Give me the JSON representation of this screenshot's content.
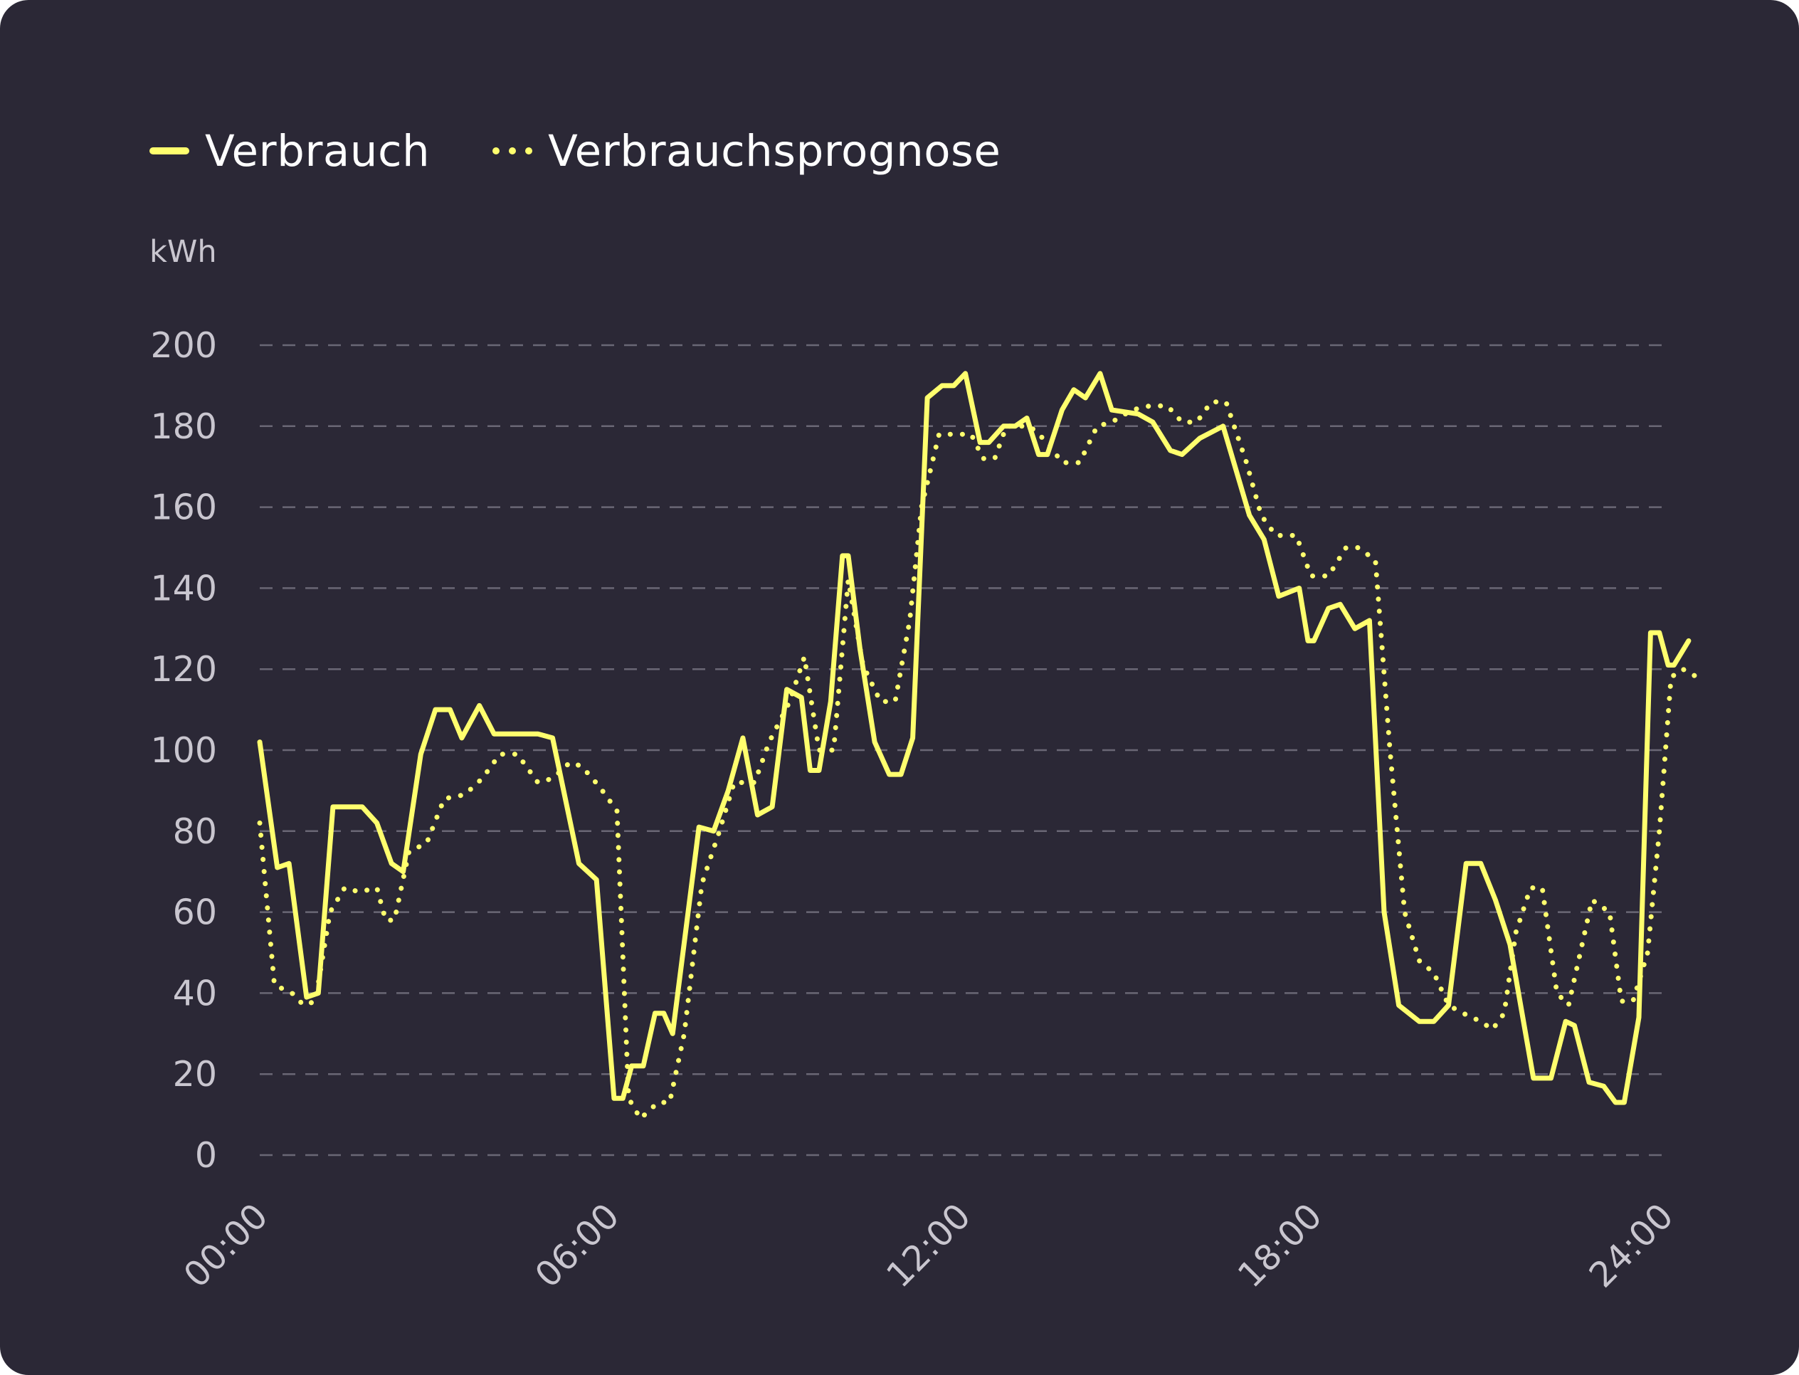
{
  "legend": {
    "actual_label": "Verbrauch",
    "forecast_label": "Verbrauchsprognose"
  },
  "colors": {
    "background": "#2b2836",
    "line": "#ffff6e",
    "grid": "#6a6775",
    "text": "#c9c6cf"
  },
  "chart_data": {
    "type": "line",
    "ylabel": "kWh",
    "ylim": [
      0,
      200
    ],
    "xlim": [
      0,
      24
    ],
    "yticks": [
      "0",
      "20",
      "40",
      "60",
      "80",
      "100",
      "120",
      "140",
      "160",
      "180",
      "200"
    ],
    "xticks": [
      {
        "value": 0,
        "label": "00:00"
      },
      {
        "value": 6,
        "label": "06:00"
      },
      {
        "value": 12,
        "label": "12:00"
      },
      {
        "value": 18,
        "label": "18:00"
      },
      {
        "value": 24,
        "label": "24:00"
      }
    ],
    "grid": true,
    "legend_position": "top-left",
    "series": [
      {
        "name": "Verbrauch",
        "style": "solid",
        "points": [
          [
            0,
            102
          ],
          [
            0.3,
            71
          ],
          [
            0.5,
            72
          ],
          [
            0.8,
            39
          ],
          [
            1,
            40
          ],
          [
            1.25,
            86
          ],
          [
            1.75,
            86
          ],
          [
            2,
            82
          ],
          [
            2.25,
            72
          ],
          [
            2.45,
            70
          ],
          [
            2.75,
            99
          ],
          [
            3,
            110
          ],
          [
            3.25,
            110
          ],
          [
            3.45,
            103
          ],
          [
            3.75,
            111
          ],
          [
            4,
            104
          ],
          [
            4.75,
            104
          ],
          [
            5,
            103
          ],
          [
            5.45,
            72
          ],
          [
            5.75,
            68
          ],
          [
            6.05,
            14
          ],
          [
            6.2,
            14
          ],
          [
            6.35,
            22
          ],
          [
            6.55,
            22
          ],
          [
            6.75,
            35
          ],
          [
            6.9,
            35
          ],
          [
            7.05,
            30
          ],
          [
            7.5,
            81
          ],
          [
            7.75,
            80
          ],
          [
            8,
            90
          ],
          [
            8.25,
            103
          ],
          [
            8.5,
            84
          ],
          [
            8.75,
            86
          ],
          [
            9,
            115
          ],
          [
            9.25,
            113
          ],
          [
            9.4,
            95
          ],
          [
            9.55,
            95
          ],
          [
            9.75,
            112
          ],
          [
            9.95,
            148
          ],
          [
            10.05,
            148
          ],
          [
            10.25,
            125
          ],
          [
            10.5,
            102
          ],
          [
            10.75,
            94
          ],
          [
            10.95,
            94
          ],
          [
            11.15,
            103
          ],
          [
            11.4,
            187
          ],
          [
            11.65,
            190
          ],
          [
            11.85,
            190
          ],
          [
            12.05,
            193
          ],
          [
            12.3,
            176
          ],
          [
            12.45,
            176
          ],
          [
            12.7,
            180
          ],
          [
            12.9,
            180
          ],
          [
            13.1,
            182
          ],
          [
            13.3,
            173
          ],
          [
            13.45,
            173
          ],
          [
            13.7,
            184
          ],
          [
            13.9,
            189
          ],
          [
            14.1,
            187
          ],
          [
            14.35,
            193
          ],
          [
            14.55,
            184
          ],
          [
            15,
            183
          ],
          [
            15.25,
            181
          ],
          [
            15.55,
            174
          ],
          [
            15.75,
            173
          ],
          [
            16.05,
            177
          ],
          [
            16.45,
            180
          ],
          [
            16.9,
            158
          ],
          [
            17.15,
            152
          ],
          [
            17.4,
            138
          ],
          [
            17.75,
            140
          ],
          [
            17.9,
            127
          ],
          [
            18,
            127
          ],
          [
            18.25,
            135
          ],
          [
            18.45,
            136
          ],
          [
            18.7,
            130
          ],
          [
            18.95,
            132
          ],
          [
            19.2,
            60
          ],
          [
            19.45,
            37
          ],
          [
            19.8,
            33
          ],
          [
            20.05,
            33
          ],
          [
            20.3,
            37
          ],
          [
            20.6,
            72
          ],
          [
            20.85,
            72
          ],
          [
            21.1,
            63
          ],
          [
            21.35,
            52
          ],
          [
            21.75,
            19
          ],
          [
            22.05,
            19
          ],
          [
            22.3,
            33
          ],
          [
            22.45,
            32
          ],
          [
            22.7,
            18
          ],
          [
            22.95,
            17
          ],
          [
            23.15,
            13
          ],
          [
            23.3,
            13
          ],
          [
            23.55,
            34
          ],
          [
            23.75,
            129
          ],
          [
            23.9,
            129
          ],
          [
            24.05,
            121
          ],
          [
            24.15,
            121
          ],
          [
            24.4,
            127
          ]
        ]
      },
      {
        "name": "Verbrauchsprognose",
        "style": "dotted",
        "points": [
          [
            0,
            82
          ],
          [
            0.25,
            42
          ],
          [
            0.55,
            40
          ],
          [
            0.75,
            37
          ],
          [
            0.95,
            38
          ],
          [
            1.2,
            60
          ],
          [
            1.45,
            66
          ],
          [
            1.7,
            65
          ],
          [
            2,
            66
          ],
          [
            2.15,
            58
          ],
          [
            2.3,
            58
          ],
          [
            2.55,
            75
          ],
          [
            2.85,
            77
          ],
          [
            3.15,
            88
          ],
          [
            3.5,
            89
          ],
          [
            3.8,
            93
          ],
          [
            4.1,
            99
          ],
          [
            4.4,
            99
          ],
          [
            4.75,
            92
          ],
          [
            5,
            93
          ],
          [
            5.3,
            97
          ],
          [
            5.5,
            96
          ],
          [
            5.8,
            91
          ],
          [
            6.1,
            85
          ],
          [
            6.3,
            14
          ],
          [
            6.5,
            9
          ],
          [
            6.8,
            13
          ],
          [
            7,
            13
          ],
          [
            7.25,
            30
          ],
          [
            7.55,
            67
          ],
          [
            7.85,
            80
          ],
          [
            8.1,
            92
          ],
          [
            8.45,
            92
          ],
          [
            8.7,
            102
          ],
          [
            9.05,
            112
          ],
          [
            9.3,
            123
          ],
          [
            9.55,
            100
          ],
          [
            9.8,
            100
          ],
          [
            10.05,
            142
          ],
          [
            10.3,
            121
          ],
          [
            10.6,
            112
          ],
          [
            10.85,
            112
          ],
          [
            11.1,
            132
          ],
          [
            11.3,
            160
          ],
          [
            11.6,
            178
          ],
          [
            11.9,
            178
          ],
          [
            12.15,
            178
          ],
          [
            12.35,
            172
          ],
          [
            12.55,
            172
          ],
          [
            12.75,
            180
          ],
          [
            12.95,
            180
          ],
          [
            13.15,
            180
          ],
          [
            13.45,
            176
          ],
          [
            13.7,
            171
          ],
          [
            14,
            171
          ],
          [
            14.3,
            180
          ],
          [
            14.55,
            181
          ],
          [
            14.9,
            184
          ],
          [
            15.2,
            185
          ],
          [
            15.5,
            185
          ],
          [
            15.75,
            181
          ],
          [
            16,
            181
          ],
          [
            16.25,
            186
          ],
          [
            16.5,
            186
          ],
          [
            16.85,
            171
          ],
          [
            17.1,
            158
          ],
          [
            17.35,
            153
          ],
          [
            17.7,
            153
          ],
          [
            17.95,
            143
          ],
          [
            18.25,
            143
          ],
          [
            18.55,
            150
          ],
          [
            18.75,
            150
          ],
          [
            19.05,
            147
          ],
          [
            19.3,
            100
          ],
          [
            19.55,
            60
          ],
          [
            19.8,
            48
          ],
          [
            20.05,
            45
          ],
          [
            20.3,
            37
          ],
          [
            20.55,
            35
          ],
          [
            20.85,
            33
          ],
          [
            21.05,
            31
          ],
          [
            21.25,
            35
          ],
          [
            21.45,
            55
          ],
          [
            21.7,
            66
          ],
          [
            21.9,
            66
          ],
          [
            22.15,
            40
          ],
          [
            22.35,
            37
          ],
          [
            22.55,
            50
          ],
          [
            22.75,
            63
          ],
          [
            23.05,
            60
          ],
          [
            23.25,
            38
          ],
          [
            23.45,
            38
          ],
          [
            23.7,
            50
          ],
          [
            23.9,
            80
          ],
          [
            24.1,
            118
          ],
          [
            24.3,
            120
          ],
          [
            24.55,
            118
          ]
        ]
      }
    ]
  }
}
